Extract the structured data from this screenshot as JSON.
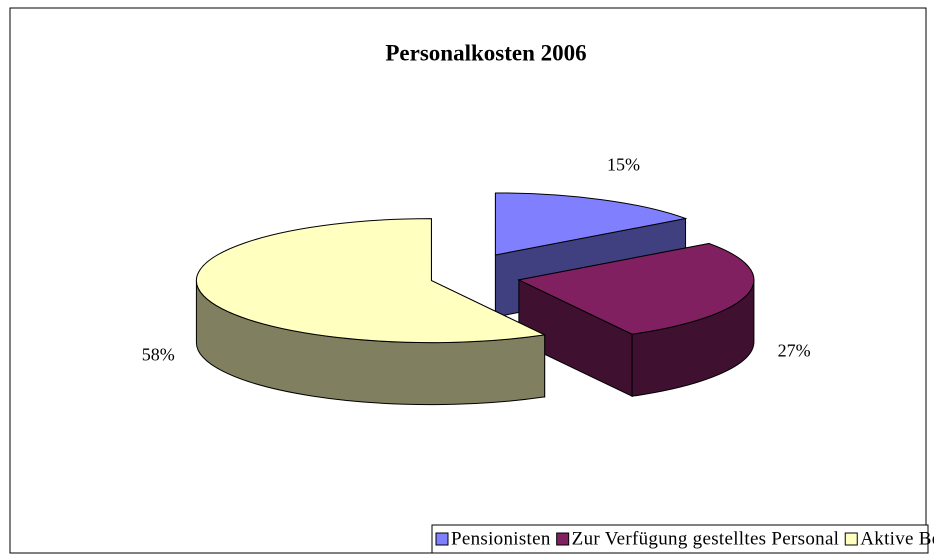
{
  "chart_data": {
    "type": "pie3d",
    "title": "Personalkosten 2006",
    "categories": [
      "Pensionisten",
      "Zur Verfügung gestelltes Personal",
      "Aktive Bedienstete der HV"
    ],
    "values": [
      15,
      27,
      58
    ],
    "value_labels": [
      "15%",
      "27%",
      "58%"
    ],
    "colors": [
      "#8080ff",
      "#802060",
      "#ffffc0"
    ],
    "legend": "bottom"
  }
}
